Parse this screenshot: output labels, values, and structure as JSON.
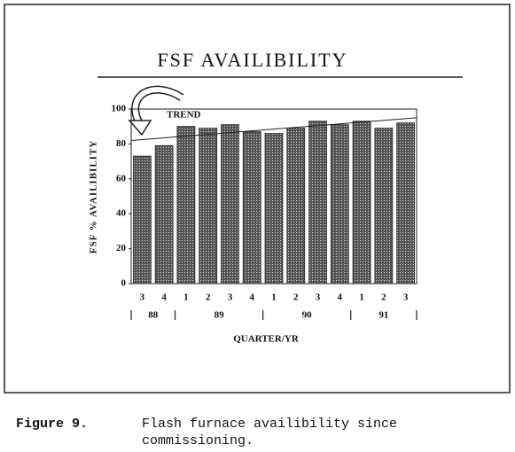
{
  "chart_data": {
    "type": "bar",
    "title": "FSF AVAILIBILITY",
    "y_label": "FSF % AVAILIBILITY",
    "x_label": "QUARTER/YR",
    "annotation": "TREND",
    "categories": [
      "3",
      "4",
      "1",
      "2",
      "3",
      "4",
      "1",
      "2",
      "3",
      "4",
      "1",
      "2",
      "3"
    ],
    "x_groups": [
      {
        "label": "88",
        "count": 2
      },
      {
        "label": "89",
        "count": 4
      },
      {
        "label": "90",
        "count": 4
      },
      {
        "label": "91",
        "count": 3
      }
    ],
    "values": [
      73,
      79,
      90,
      89,
      91,
      87,
      86,
      89,
      93,
      91,
      93,
      89,
      92
    ],
    "trend_line": [
      82,
      95
    ],
    "color": "#333333",
    "ylim": [
      0,
      100
    ],
    "yticks": [
      0,
      20,
      40,
      60,
      80,
      100
    ]
  },
  "caption": {
    "label": "Figure 9.",
    "text": "Flash furnace availibility since commissioning."
  }
}
